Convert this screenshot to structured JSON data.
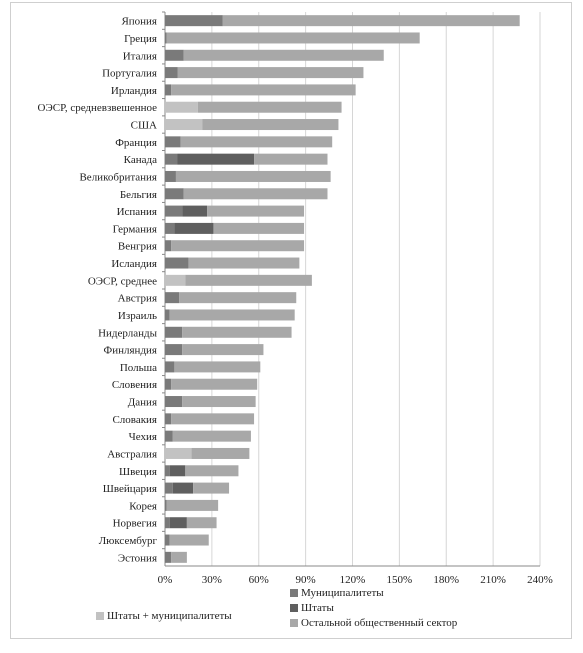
{
  "chart_data": {
    "type": "bar",
    "orientation": "horizontal",
    "stacked": true,
    "xlim": [
      0,
      240
    ],
    "xticks": [
      "0%",
      "30%",
      "60%",
      "90%",
      "120%",
      "150%",
      "180%",
      "210%",
      "240%"
    ],
    "categories": [
      "Япония",
      "Греция",
      "Италия",
      "Португалия",
      "Ирландия",
      "ОЭСР, средневзвешенное",
      "США",
      "Франция",
      "Канада",
      "Великобритания",
      "Бельгия",
      "Испания",
      "Германия",
      "Венгрия",
      "Исландия",
      "ОЭСР, среднее",
      "Австрия",
      "Израиль",
      "Нидерланды",
      "Финляндия",
      "Польша",
      "Словения",
      "Дания",
      "Словакия",
      "Чехия",
      "Австралия",
      "Швеция",
      "Швейцария",
      "Корея",
      "Норвегия",
      "Люксембург",
      "Эстония"
    ],
    "series": [
      {
        "name": "Муниципалитеты",
        "color": "#7a7a7a",
        "values": [
          37,
          1,
          12,
          8,
          4,
          0,
          0,
          10,
          8,
          7,
          12,
          11,
          6,
          4,
          15,
          0,
          9,
          3,
          11,
          11,
          6,
          4,
          11,
          4,
          5,
          0,
          3,
          5,
          1,
          3,
          3,
          4
        ]
      },
      {
        "name": "Штаты",
        "color": "#5f5f5f",
        "values": [
          0,
          0,
          0,
          0,
          0,
          0,
          0,
          0,
          49,
          0,
          0,
          16,
          25,
          0,
          0,
          0,
          0,
          0,
          0,
          0,
          0,
          0,
          0,
          0,
          0,
          0,
          10,
          13,
          0,
          11,
          0,
          0
        ]
      },
      {
        "name": "Штаты + муниципалитеты",
        "color": "#c2c2c2",
        "values": [
          0,
          0,
          0,
          0,
          0,
          21,
          24,
          0,
          0,
          0,
          0,
          0,
          0,
          0,
          0,
          13,
          0,
          0,
          0,
          0,
          0,
          0,
          0,
          0,
          0,
          17,
          0,
          0,
          0,
          0,
          0,
          0
        ]
      },
      {
        "name": "Остальной общественный сектор",
        "color": "#a8a8a8",
        "values": [
          190,
          162,
          128,
          119,
          118,
          92,
          87,
          97,
          47,
          99,
          92,
          62,
          58,
          85,
          71,
          81,
          75,
          80,
          70,
          52,
          55,
          55,
          47,
          53,
          50,
          37,
          34,
          23,
          33,
          19,
          25,
          10
        ]
      }
    ],
    "legend": {
      "placement": "bottom"
    }
  }
}
